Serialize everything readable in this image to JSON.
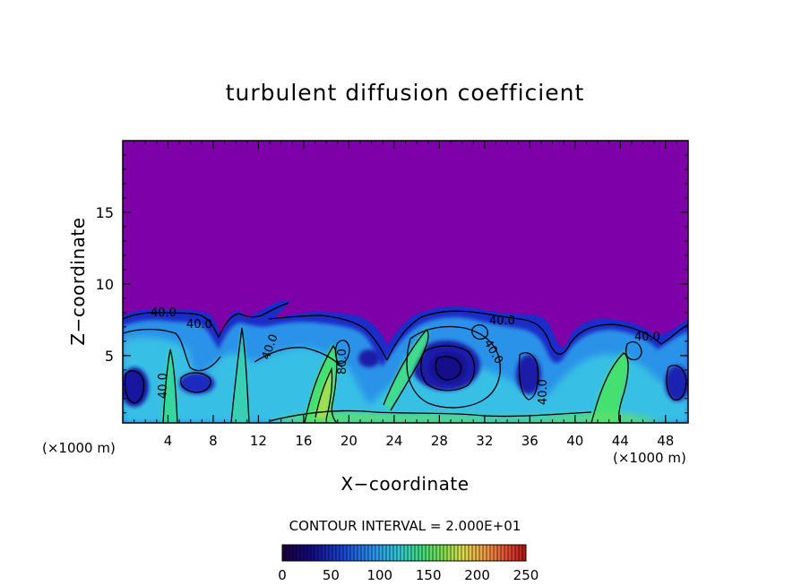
{
  "chart_data": {
    "type": "heatmap",
    "title": "turbulent diffusion coefficient",
    "xlabel": "X−coordinate",
    "ylabel": "Z−coordinate",
    "x_unit_left": "(×1000 m)",
    "x_unit_right": "(×1000 m)",
    "xlim": [
      0,
      50
    ],
    "ylim": [
      0.3,
      20
    ],
    "x_ticks": [
      4,
      8,
      12,
      16,
      20,
      24,
      28,
      32,
      36,
      40,
      44,
      48
    ],
    "y_ticks": [
      5,
      10,
      15
    ],
    "contour_interval_text": "CONTOUR INTERVAL = 2.000E+01",
    "contour_labels": [
      "40.0",
      "40.0",
      "40.0",
      "40.0",
      "80.0",
      "40.0",
      "40.0",
      "40.0",
      "40.0"
    ],
    "colorbar": {
      "min": 0,
      "max": 250,
      "ticks": [
        0,
        50,
        100,
        150,
        200,
        250
      ],
      "tick_labels": [
        "0",
        "50",
        "100",
        "150",
        "200",
        "250"
      ]
    },
    "background_color": "#7e00a8",
    "colors": [
      "#2a0060",
      "#1a10a0",
      "#2040d0",
      "#2a8ee8",
      "#35c0e8",
      "#30d8b0",
      "#40e070",
      "#90e050",
      "#e0e050",
      "#f0a040",
      "#e04030",
      "#b01010"
    ]
  }
}
